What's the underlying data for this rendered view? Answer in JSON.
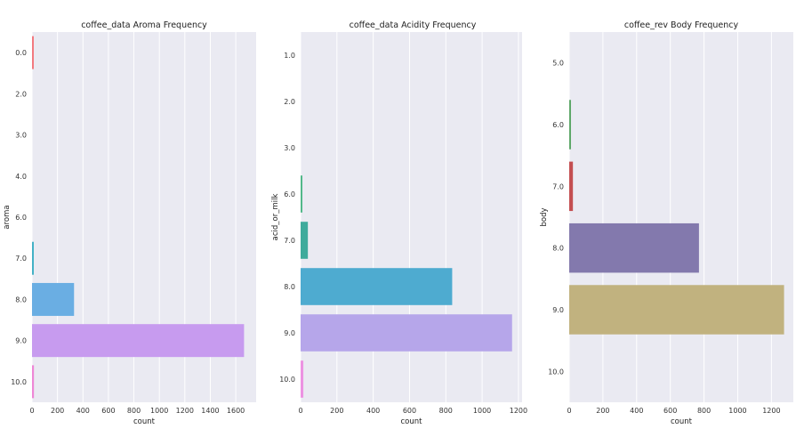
{
  "chart_data": [
    {
      "type": "bar",
      "orientation": "horizontal",
      "title": "coffee_data Aroma Frequency",
      "xlabel": "count",
      "ylabel": "aroma",
      "categories": [
        "0.0",
        "2.0",
        "3.0",
        "4.0",
        "6.0",
        "7.0",
        "8.0",
        "9.0",
        "10.0"
      ],
      "values": [
        3,
        0,
        0,
        0,
        0,
        8,
        330,
        1665,
        15
      ],
      "colors": [
        "#f27a80",
        "#c9a648",
        "#9bb445",
        "#4cbb6e",
        "#4fbba4",
        "#43b1c6",
        "#6aaee3",
        "#c79bef",
        "#ee87d6"
      ],
      "xlim": [
        0,
        1760
      ],
      "xticks": [
        0,
        200,
        400,
        600,
        800,
        1000,
        1200,
        1400,
        1600
      ],
      "grid": true
    },
    {
      "type": "bar",
      "orientation": "horizontal",
      "title": "coffee_data Acidity Frequency",
      "xlabel": "count",
      "ylabel": "acid_or_milk",
      "categories": [
        "1.0",
        "2.0",
        "3.0",
        "6.0",
        "7.0",
        "8.0",
        "9.0",
        "10.0"
      ],
      "values": [
        0,
        0,
        0,
        4,
        40,
        835,
        1165,
        15
      ],
      "colors": [
        "#e8a070",
        "#c4b04f",
        "#8fb956",
        "#52b88a",
        "#3fab9c",
        "#4eabd0",
        "#b6a6ea",
        "#ec93e2"
      ],
      "xlim": [
        0,
        1220
      ],
      "xticks": [
        0,
        200,
        400,
        600,
        800,
        1000,
        1200
      ],
      "grid": true
    },
    {
      "type": "bar",
      "orientation": "horizontal",
      "title": "coffee_rev Body Frequency",
      "xlabel": "count",
      "ylabel": "body",
      "categories": [
        "5.0",
        "6.0",
        "7.0",
        "8.0",
        "9.0",
        "10.0"
      ],
      "values": [
        0,
        3,
        22,
        770,
        1275,
        0
      ],
      "colors": [
        "#4e76b0",
        "#5fa86a",
        "#c44f52",
        "#8379ad",
        "#c1b27f",
        "#6db5cb"
      ],
      "xlim": [
        0,
        1330
      ],
      "xticks": [
        0,
        200,
        400,
        600,
        800,
        1000,
        1200
      ],
      "grid": true
    }
  ]
}
